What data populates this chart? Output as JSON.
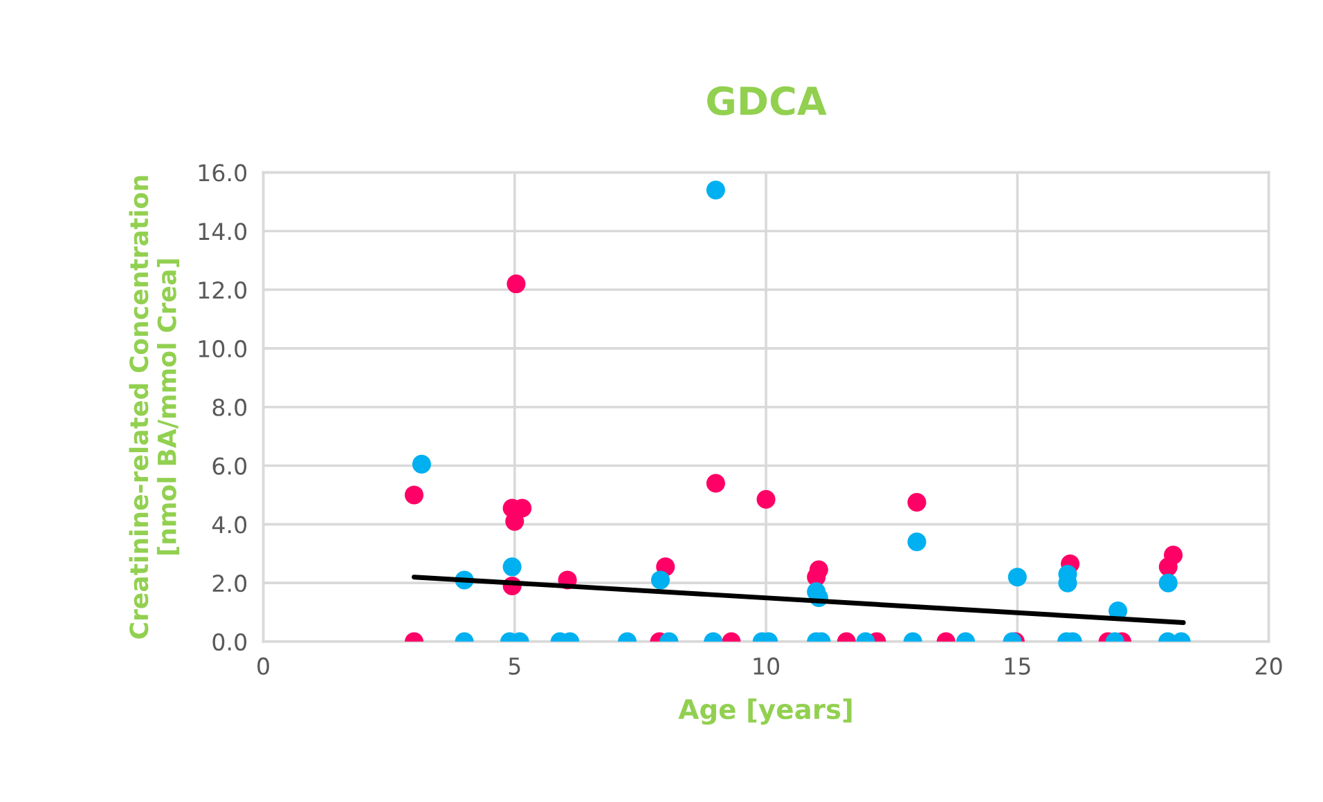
{
  "chart_data": {
    "type": "scatter",
    "title": "GDCA",
    "xlabel": "Age [years]",
    "ylabel": "Creatinine-related Concentration\n[nmol BA/mmol Crea]",
    "xlim": [
      0,
      20
    ],
    "xticks": [
      0,
      5,
      10,
      15,
      20
    ],
    "ylim": [
      0,
      16
    ],
    "yticks": [
      {
        "value": 0,
        "label": "0.0"
      },
      {
        "value": 2,
        "label": "2.0"
      },
      {
        "value": 4,
        "label": "4.0"
      },
      {
        "value": 6,
        "label": "6.0"
      },
      {
        "value": 8,
        "label": "8.0"
      },
      {
        "value": 10,
        "label": "10.0"
      },
      {
        "value": 12,
        "label": "12.0"
      },
      {
        "value": 14,
        "label": "14.0"
      },
      {
        "value": 16,
        "label": "16.0"
      }
    ],
    "grid": true,
    "legend": false,
    "marker": "circle",
    "series": [
      {
        "color": "#ff0066",
        "x": [
          3.0,
          5.03,
          4.95,
          5.15,
          5.0,
          4.95,
          6.05,
          8.0,
          9.0,
          10.0,
          11.0,
          11.05,
          13.0,
          16.05,
          18.0,
          18.1,
          3.0,
          7.88,
          9.31,
          11.6,
          12.2,
          13.58,
          14.96,
          16.8,
          17.08
        ],
        "values": [
          5.0,
          12.2,
          4.55,
          4.55,
          4.1,
          1.9,
          2.1,
          2.55,
          5.4,
          4.85,
          2.2,
          2.45,
          4.75,
          2.65,
          2.55,
          2.95,
          0,
          0,
          0,
          0,
          0,
          0,
          0,
          0,
          0
        ]
      },
      {
        "color": "#00b0f0",
        "x": [
          3.15,
          4.0,
          4.95,
          7.9,
          9.0,
          11.0,
          11.05,
          13.0,
          15.0,
          16.0,
          16.0,
          17.0,
          18.0,
          4.0,
          4.9,
          5.1,
          5.9,
          6.1,
          7.24,
          8.07,
          8.95,
          9.92,
          10.05,
          11.0,
          11.1,
          11.98,
          12.92,
          13.97,
          14.9,
          15.98,
          16.1,
          16.94,
          17.99,
          18.26
        ],
        "values": [
          6.05,
          2.1,
          2.55,
          2.1,
          15.4,
          1.7,
          1.5,
          3.4,
          2.2,
          2.3,
          2.0,
          1.05,
          2.0,
          0,
          0,
          0,
          0,
          0,
          0,
          0,
          0,
          0,
          0,
          0,
          0,
          0,
          0,
          0,
          0,
          0,
          0,
          0,
          0,
          0
        ]
      },
      {
        "type": "line",
        "marker": "none",
        "color": "#000000",
        "x": [
          3.0,
          18.3
        ],
        "values": [
          2.2,
          0.65
        ]
      }
    ]
  }
}
